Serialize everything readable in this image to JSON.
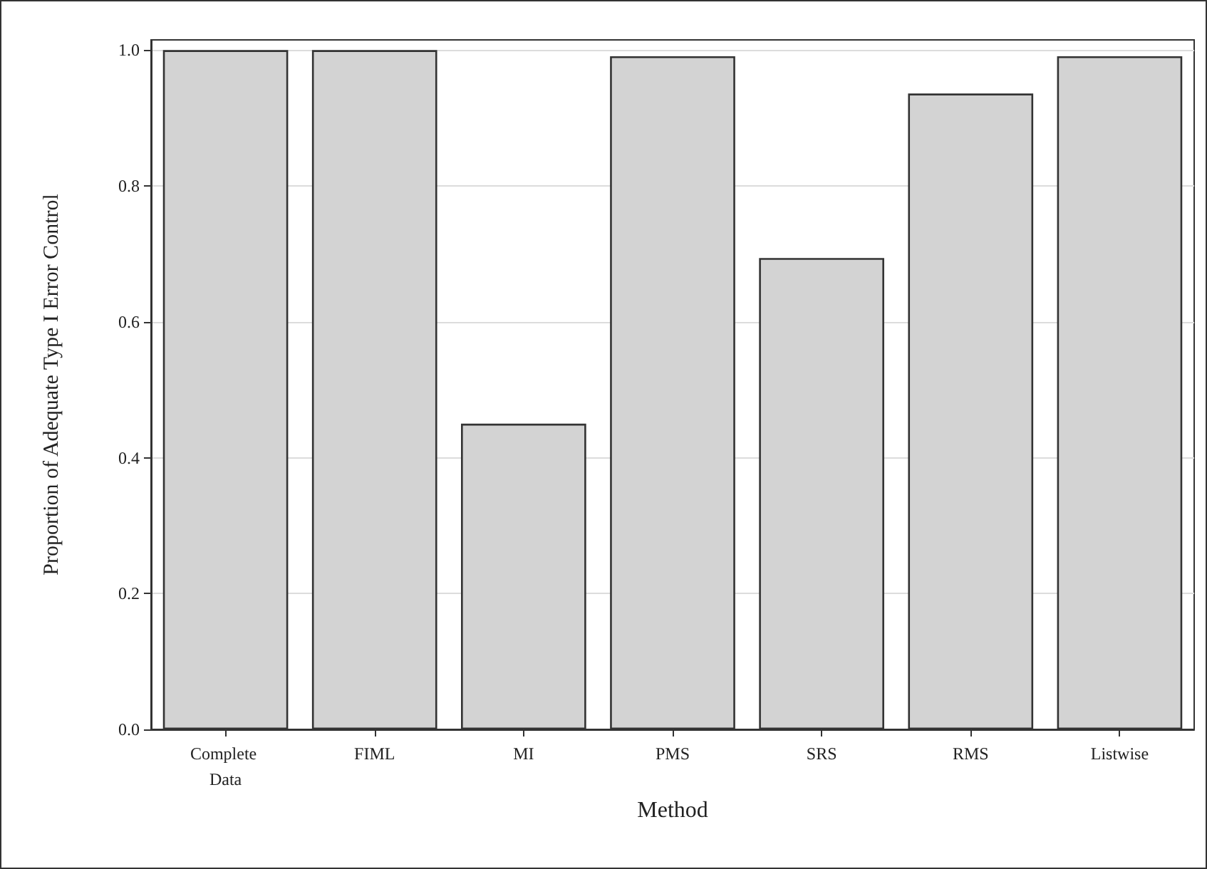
{
  "chart_data": {
    "type": "bar",
    "xlabel": "Method",
    "ylabel": "Proportion of Adequate Type I Error Control",
    "categories": [
      "Complete Data",
      "FIML",
      "MI",
      "PMS",
      "SRS",
      "RMS",
      "Listwise"
    ],
    "values": [
      1.0,
      1.0,
      0.45,
      0.991,
      0.694,
      0.936,
      0.991
    ],
    "color": "#d3d3d3",
    "ylim": [
      0,
      1.015
    ],
    "yticks": [
      {
        "value": 0,
        "label": "0.0"
      },
      0.2,
      0.4,
      0.6,
      0.8,
      {
        "value": 1,
        "label": "1.0"
      }
    ],
    "grid": "y"
  }
}
